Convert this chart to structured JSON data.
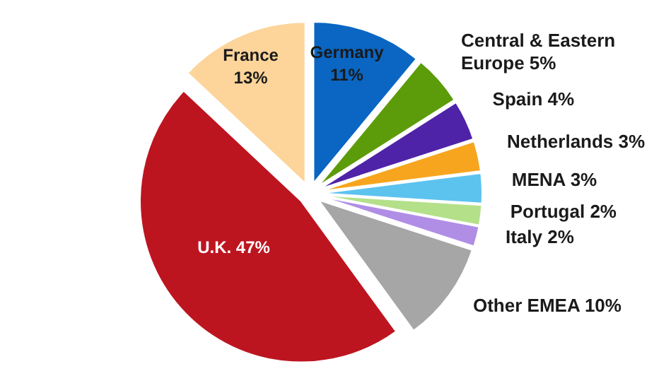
{
  "chart_data": {
    "type": "pie",
    "categories": [
      "Germany",
      "Central & Eastern Europe",
      "Spain",
      "Netherlands",
      "MENA",
      "Portugal",
      "Italy",
      "Other EMEA",
      "U.K.",
      "France"
    ],
    "values": [
      11,
      5,
      4,
      3,
      3,
      2,
      2,
      10,
      47,
      13
    ],
    "value_labels": [
      "11%",
      "5%",
      "4%",
      "3%",
      "3%",
      "2%",
      "2%",
      "10%",
      "47%",
      "13%"
    ],
    "colors": [
      "#0a66c2",
      "#5c9c0a",
      "#4f23a8",
      "#f7a51e",
      "#5cc3ef",
      "#b4e08a",
      "#b08ee6",
      "#a6a6a6",
      "#bd1520",
      "#fdd49a"
    ]
  }
}
